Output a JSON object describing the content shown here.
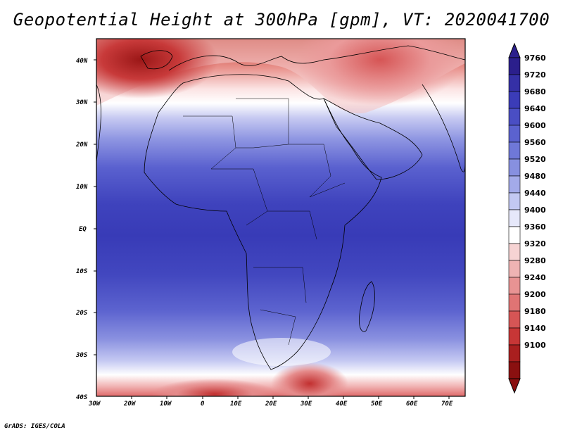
{
  "title": "Geopotential Height at 300hPa [gpm], VT: 2020041700",
  "credit": "GrADS: IGES/COLA",
  "map": {
    "lat_labels": [
      "40N",
      "30N",
      "20N",
      "10N",
      "EQ",
      "10S",
      "20S",
      "30S",
      "40S"
    ],
    "lon_labels": [
      "30W",
      "20W",
      "10W",
      "0",
      "10E",
      "20E",
      "30E",
      "40E",
      "50E",
      "60E",
      "70E"
    ]
  },
  "colorbar": {
    "levels": [
      "9760",
      "9720",
      "9680",
      "9640",
      "9600",
      "9560",
      "9520",
      "9480",
      "9440",
      "9400",
      "9360",
      "9320",
      "9280",
      "9240",
      "9200",
      "9180",
      "9140",
      "9100"
    ],
    "colors": [
      "#2b1f8c",
      "#3530a6",
      "#3b3cb8",
      "#4a4ec4",
      "#5b62cf",
      "#6f78d8",
      "#8790e0",
      "#a3aae9",
      "#c3c8f2",
      "#e6e8fa",
      "#ffffff",
      "#f6d3d3",
      "#efb3b3",
      "#e89393",
      "#e07474",
      "#d65555",
      "#c73636",
      "#a91f1f",
      "#8a1010"
    ]
  }
}
